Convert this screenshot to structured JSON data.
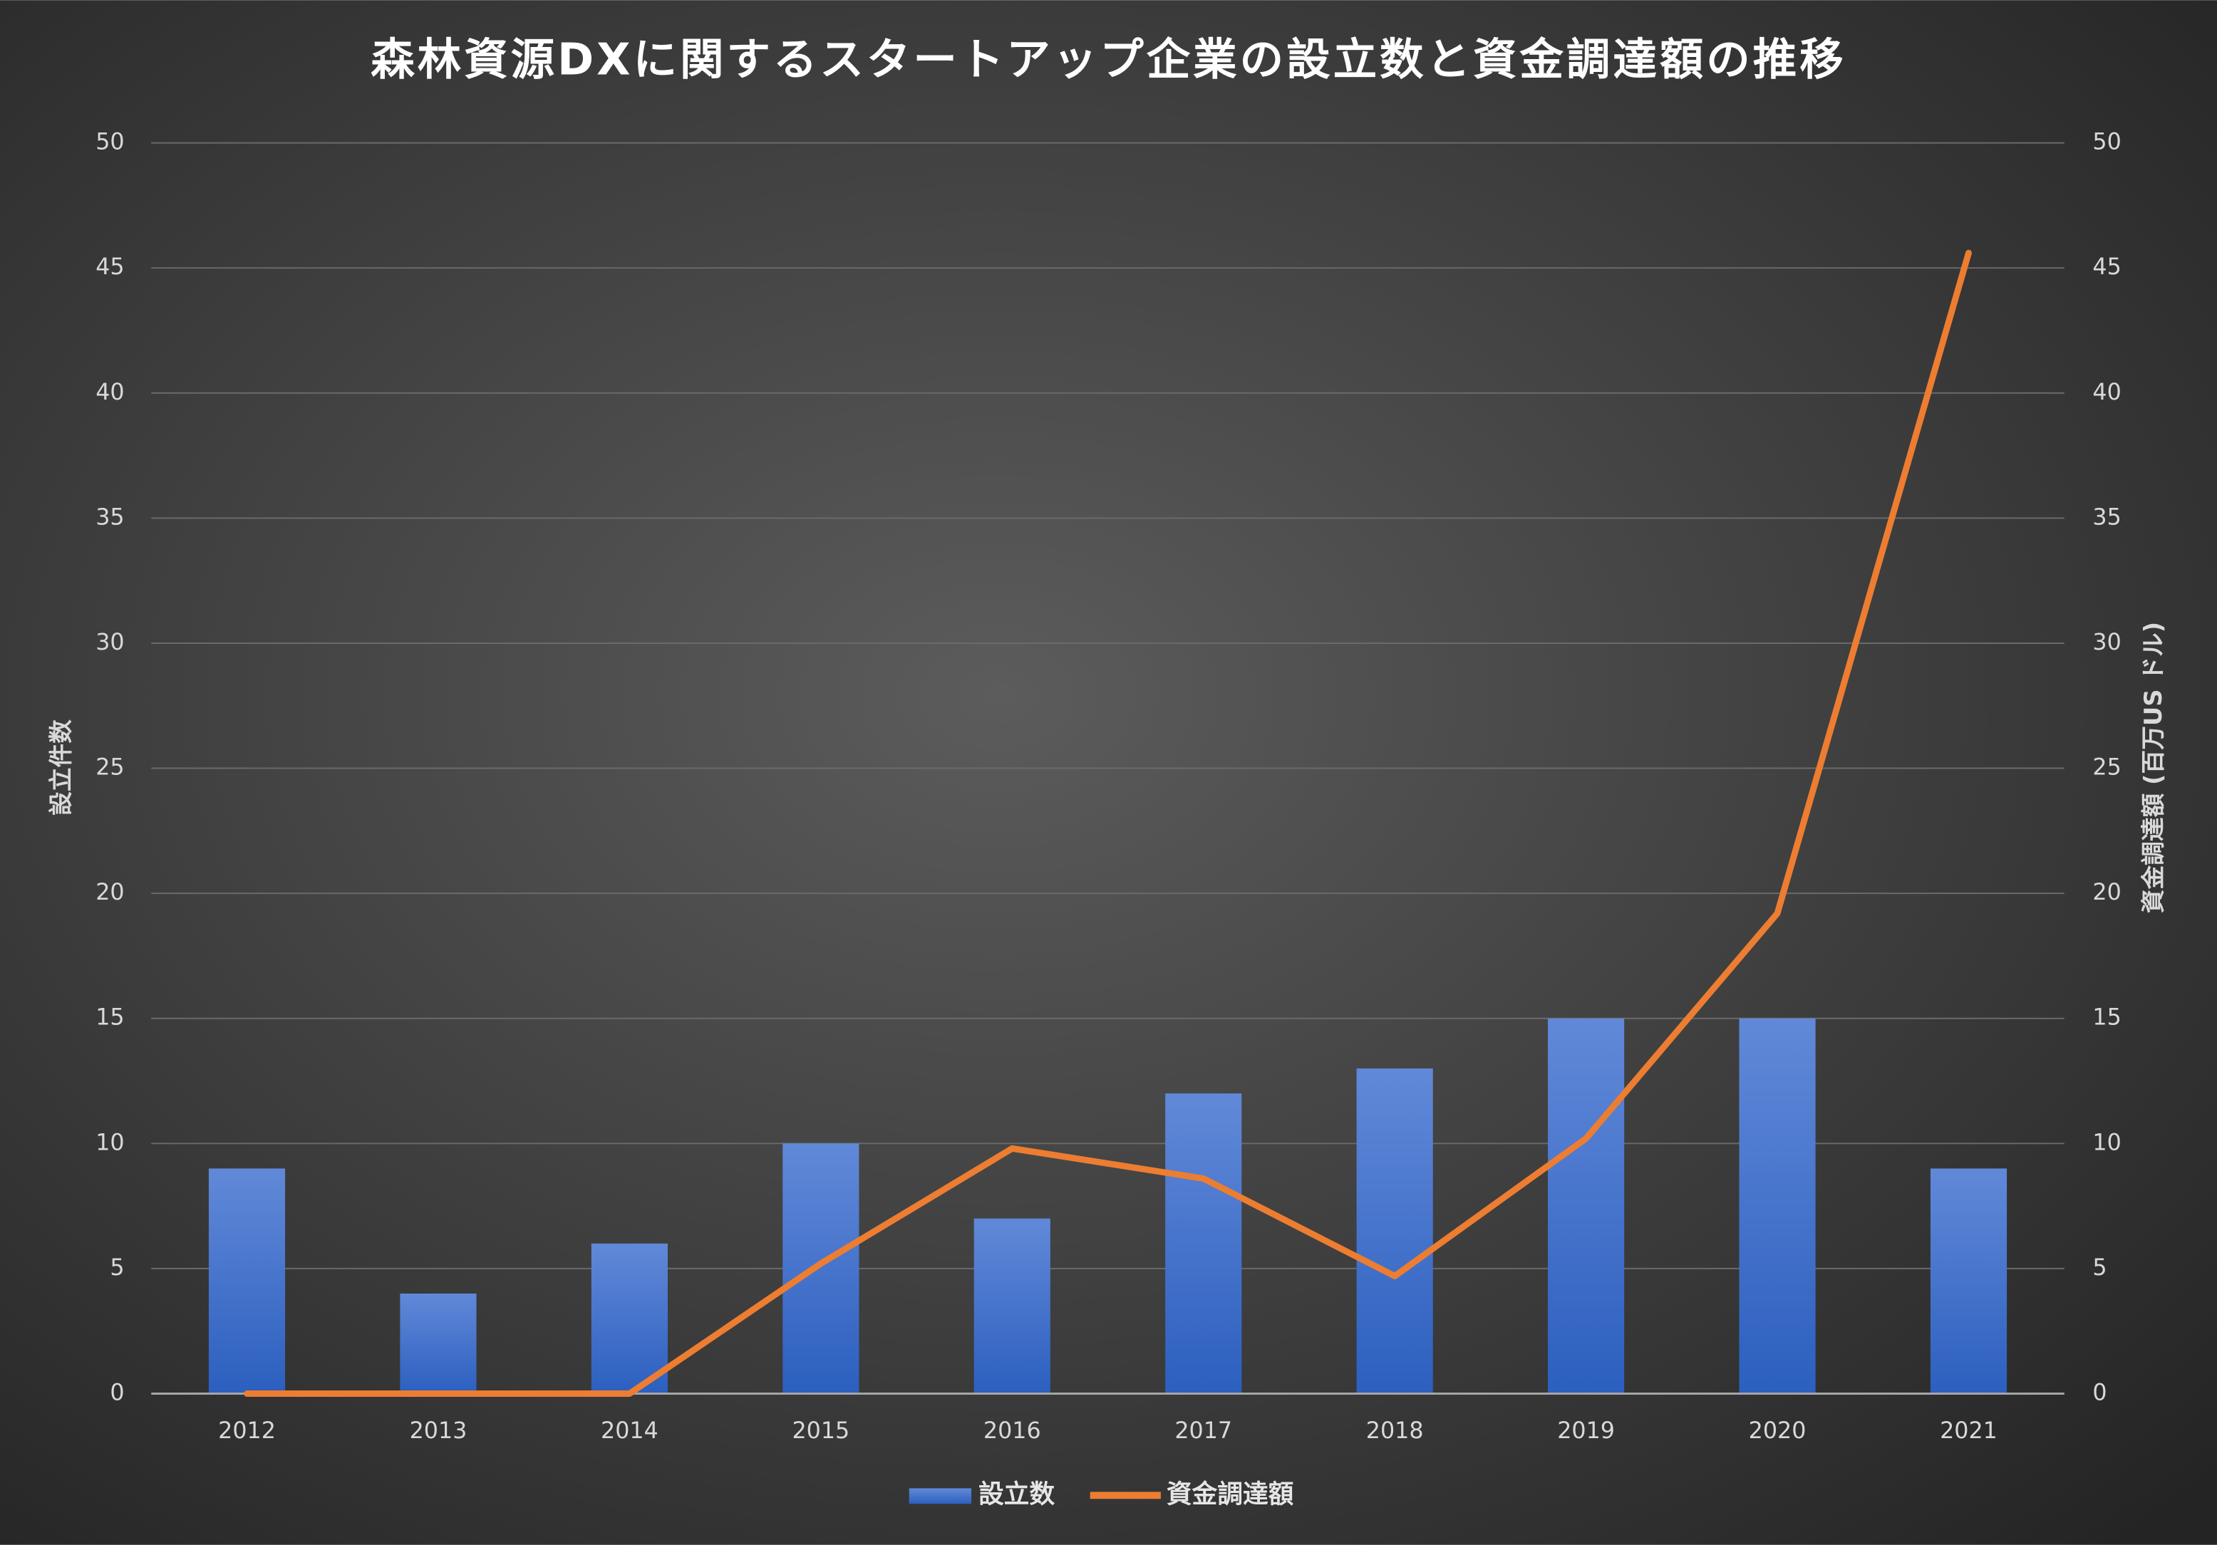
{
  "chart_data": {
    "type": "bar",
    "title": "森林資源DXに関するスタートアップ企業の設立数と資金調達額の推移",
    "y_label": "設立件数",
    "y2_label": "資金調達額 (百万US ドル)",
    "categories": [
      "2012",
      "2013",
      "2014",
      "2015",
      "2016",
      "2017",
      "2018",
      "2019",
      "2020",
      "2021"
    ],
    "series": [
      {
        "name": "設立数",
        "type": "bar",
        "color": "#4472c4",
        "values": [
          9,
          4,
          6,
          10,
          7,
          12,
          13,
          15,
          15,
          9
        ]
      },
      {
        "name": "資金調達額",
        "type": "line",
        "axis": "y2",
        "color": "#ed7d31",
        "values": [
          0,
          0,
          0,
          5.2,
          9.8,
          8.6,
          4.7,
          10.2,
          19.2,
          45.6
        ]
      }
    ],
    "ylim": [
      0,
      50
    ],
    "yticks": [
      0,
      5,
      10,
      15,
      20,
      25,
      30,
      35,
      40,
      45,
      50
    ],
    "y2lim": [
      0,
      50
    ],
    "y2ticks": [
      0,
      5,
      10,
      15,
      20,
      25,
      30,
      35,
      40,
      45,
      50
    ],
    "grid": true,
    "legend": "bottom"
  }
}
